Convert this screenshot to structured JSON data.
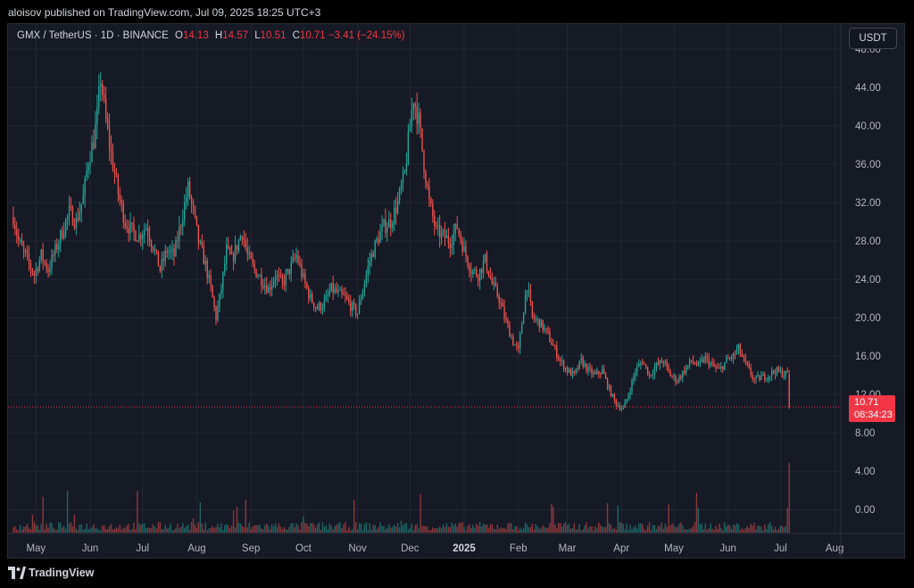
{
  "header": {
    "published_text": "aloisov published on TradingView.com, Jul 09, 2025 18:25 UTC+3"
  },
  "legend": {
    "symbol": "GMX / TetherUS · 1D · BINANCE",
    "o_label": "O",
    "o_value": "14.13",
    "h_label": "H",
    "h_value": "14.57",
    "l_label": "L",
    "l_value": "10.51",
    "c_label": "C",
    "c_value": "10.71",
    "change": "−3.41 (−24.15%)"
  },
  "currency_button": "USDT",
  "price_badge": {
    "price": "10.71",
    "countdown": "08:34:23"
  },
  "footer": {
    "brand": "TradingView"
  },
  "colors": {
    "up": "#26a69a",
    "down": "#ef5350",
    "background": "#161a25",
    "grid": "#232733",
    "text": "#b2b5be",
    "last_price": "#f23645"
  },
  "chart_data": {
    "type": "candlestick",
    "symbol": "GMX / TetherUS",
    "interval": "1D",
    "exchange": "BINANCE",
    "y_ticks": [
      "48.00",
      "44.00",
      "40.00",
      "36.00",
      "32.00",
      "28.00",
      "24.00",
      "20.00",
      "16.00",
      "12.00",
      "8.00",
      "4.00",
      "0.00"
    ],
    "y_range": [
      -2.4,
      50.6
    ],
    "x_ticks": [
      "May",
      "Jun",
      "Jul",
      "Aug",
      "Sep",
      "Oct",
      "Nov",
      "Dec",
      "2025",
      "Feb",
      "Mar",
      "Apr",
      "May",
      "Jun",
      "Jul",
      "Aug"
    ],
    "x_tick_bold": [
      false,
      false,
      false,
      false,
      false,
      false,
      false,
      false,
      true,
      false,
      false,
      false,
      false,
      false,
      false,
      false
    ],
    "x_range_days": [
      -3,
      473
    ],
    "x_tick_days": [
      13,
      44,
      74,
      105,
      136,
      166,
      197,
      227,
      258,
      289,
      317,
      348,
      378,
      409,
      439,
      470
    ],
    "last_price": 10.71,
    "close_anchors": [
      {
        "day": 0,
        "price": 30.5
      },
      {
        "day": 3,
        "price": 28.0
      },
      {
        "day": 8,
        "price": 26.0
      },
      {
        "day": 12,
        "price": 24.5
      },
      {
        "day": 16,
        "price": 26.5
      },
      {
        "day": 20,
        "price": 25.0
      },
      {
        "day": 24,
        "price": 27.0
      },
      {
        "day": 28,
        "price": 29.0
      },
      {
        "day": 32,
        "price": 31.0
      },
      {
        "day": 36,
        "price": 30.0
      },
      {
        "day": 40,
        "price": 32.5
      },
      {
        "day": 43,
        "price": 36.5
      },
      {
        "day": 46,
        "price": 38.5
      },
      {
        "day": 48,
        "price": 41.0
      },
      {
        "day": 50,
        "price": 45.0
      },
      {
        "day": 53,
        "price": 40.5
      },
      {
        "day": 56,
        "price": 37.0
      },
      {
        "day": 60,
        "price": 33.0
      },
      {
        "day": 64,
        "price": 30.0
      },
      {
        "day": 68,
        "price": 29.0
      },
      {
        "day": 72,
        "price": 28.5
      },
      {
        "day": 76,
        "price": 29.5
      },
      {
        "day": 80,
        "price": 27.5
      },
      {
        "day": 84,
        "price": 25.0
      },
      {
        "day": 88,
        "price": 27.0
      },
      {
        "day": 92,
        "price": 26.5
      },
      {
        "day": 96,
        "price": 30.0
      },
      {
        "day": 100,
        "price": 33.5
      },
      {
        "day": 103,
        "price": 31.0
      },
      {
        "day": 106,
        "price": 28.0
      },
      {
        "day": 110,
        "price": 25.5
      },
      {
        "day": 113,
        "price": 23.0
      },
      {
        "day": 116,
        "price": 20.0
      },
      {
        "day": 119,
        "price": 23.0
      },
      {
        "day": 122,
        "price": 27.0
      },
      {
        "day": 125,
        "price": 26.0
      },
      {
        "day": 128,
        "price": 27.5
      },
      {
        "day": 131,
        "price": 29.0
      },
      {
        "day": 134,
        "price": 26.5
      },
      {
        "day": 138,
        "price": 25.0
      },
      {
        "day": 142,
        "price": 24.0
      },
      {
        "day": 146,
        "price": 23.0
      },
      {
        "day": 150,
        "price": 24.5
      },
      {
        "day": 154,
        "price": 23.5
      },
      {
        "day": 158,
        "price": 25.0
      },
      {
        "day": 162,
        "price": 26.5
      },
      {
        "day": 166,
        "price": 24.0
      },
      {
        "day": 170,
        "price": 22.0
      },
      {
        "day": 174,
        "price": 21.0
      },
      {
        "day": 178,
        "price": 21.5
      },
      {
        "day": 182,
        "price": 23.0
      },
      {
        "day": 186,
        "price": 22.5
      },
      {
        "day": 190,
        "price": 22.0
      },
      {
        "day": 194,
        "price": 21.0
      },
      {
        "day": 197,
        "price": 20.5
      },
      {
        "day": 200,
        "price": 23.0
      },
      {
        "day": 204,
        "price": 26.0
      },
      {
        "day": 208,
        "price": 28.0
      },
      {
        "day": 212,
        "price": 29.5
      },
      {
        "day": 216,
        "price": 30.0
      },
      {
        "day": 220,
        "price": 32.0
      },
      {
        "day": 224,
        "price": 35.0
      },
      {
        "day": 227,
        "price": 40.0
      },
      {
        "day": 229,
        "price": 43.0
      },
      {
        "day": 232,
        "price": 40.5
      },
      {
        "day": 235,
        "price": 36.0
      },
      {
        "day": 238,
        "price": 32.0
      },
      {
        "day": 242,
        "price": 29.0
      },
      {
        "day": 246,
        "price": 28.5
      },
      {
        "day": 250,
        "price": 28.0
      },
      {
        "day": 254,
        "price": 29.5
      },
      {
        "day": 258,
        "price": 27.0
      },
      {
        "day": 262,
        "price": 25.0
      },
      {
        "day": 266,
        "price": 24.5
      },
      {
        "day": 270,
        "price": 26.0
      },
      {
        "day": 274,
        "price": 23.5
      },
      {
        "day": 278,
        "price": 22.0
      },
      {
        "day": 282,
        "price": 19.5
      },
      {
        "day": 286,
        "price": 17.5
      },
      {
        "day": 289,
        "price": 16.5
      },
      {
        "day": 292,
        "price": 21.0
      },
      {
        "day": 294,
        "price": 23.5
      },
      {
        "day": 297,
        "price": 20.0
      },
      {
        "day": 301,
        "price": 19.5
      },
      {
        "day": 305,
        "price": 18.5
      },
      {
        "day": 309,
        "price": 17.0
      },
      {
        "day": 313,
        "price": 15.5
      },
      {
        "day": 317,
        "price": 14.5
      },
      {
        "day": 321,
        "price": 14.0
      },
      {
        "day": 325,
        "price": 15.5
      },
      {
        "day": 329,
        "price": 14.5
      },
      {
        "day": 333,
        "price": 14.0
      },
      {
        "day": 337,
        "price": 14.5
      },
      {
        "day": 341,
        "price": 12.5
      },
      {
        "day": 345,
        "price": 11.0
      },
      {
        "day": 349,
        "price": 10.5
      },
      {
        "day": 352,
        "price": 12.0
      },
      {
        "day": 356,
        "price": 14.5
      },
      {
        "day": 360,
        "price": 15.5
      },
      {
        "day": 364,
        "price": 14.0
      },
      {
        "day": 368,
        "price": 15.0
      },
      {
        "day": 372,
        "price": 15.5
      },
      {
        "day": 376,
        "price": 14.0
      },
      {
        "day": 380,
        "price": 13.5
      },
      {
        "day": 384,
        "price": 14.5
      },
      {
        "day": 388,
        "price": 15.5
      },
      {
        "day": 392,
        "price": 15.0
      },
      {
        "day": 396,
        "price": 15.8
      },
      {
        "day": 400,
        "price": 15.0
      },
      {
        "day": 404,
        "price": 14.5
      },
      {
        "day": 408,
        "price": 15.5
      },
      {
        "day": 412,
        "price": 16.0
      },
      {
        "day": 415,
        "price": 16.8
      },
      {
        "day": 418,
        "price": 15.5
      },
      {
        "day": 421,
        "price": 14.5
      },
      {
        "day": 424,
        "price": 13.5
      },
      {
        "day": 428,
        "price": 13.8
      },
      {
        "day": 432,
        "price": 14.0
      },
      {
        "day": 436,
        "price": 14.5
      },
      {
        "day": 440,
        "price": 14.2
      },
      {
        "day": 443,
        "price": 14.13
      }
    ],
    "last_candle": {
      "open": 14.13,
      "high": 14.57,
      "low": 10.51,
      "close": 10.71
    }
  }
}
